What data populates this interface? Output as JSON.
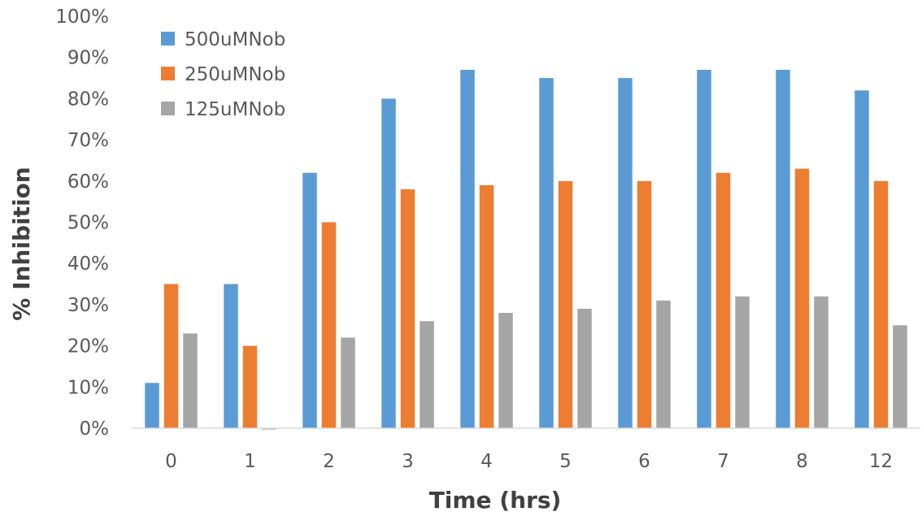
{
  "chart_data": {
    "type": "bar",
    "xlabel": "Time (hrs)",
    "ylabel": "% Inhibition",
    "ylim": [
      0,
      1
    ],
    "y_ticks": [
      "0%",
      "10%",
      "20%",
      "30%",
      "40%",
      "50%",
      "60%",
      "70%",
      "80%",
      "90%",
      "100%"
    ],
    "categories": [
      "0",
      "1",
      "2",
      "3",
      "4",
      "5",
      "6",
      "7",
      "8",
      "12"
    ],
    "series": [
      {
        "name": "500uMNob",
        "color": "#5b9bd5",
        "values": [
          0.11,
          0.35,
          0.62,
          0.8,
          0.87,
          0.85,
          0.85,
          0.87,
          0.87,
          0.82
        ]
      },
      {
        "name": "250uMNob",
        "color": "#ed7d31",
        "values": [
          0.35,
          0.2,
          0.5,
          0.58,
          0.59,
          0.6,
          0.6,
          0.62,
          0.63,
          0.6
        ]
      },
      {
        "name": "125uMNob",
        "color": "#a5a5a5",
        "values": [
          0.23,
          -0.003,
          0.22,
          0.26,
          0.28,
          0.29,
          0.31,
          0.32,
          0.32,
          0.25
        ]
      }
    ],
    "grid": false,
    "legend_position": "top-left"
  }
}
